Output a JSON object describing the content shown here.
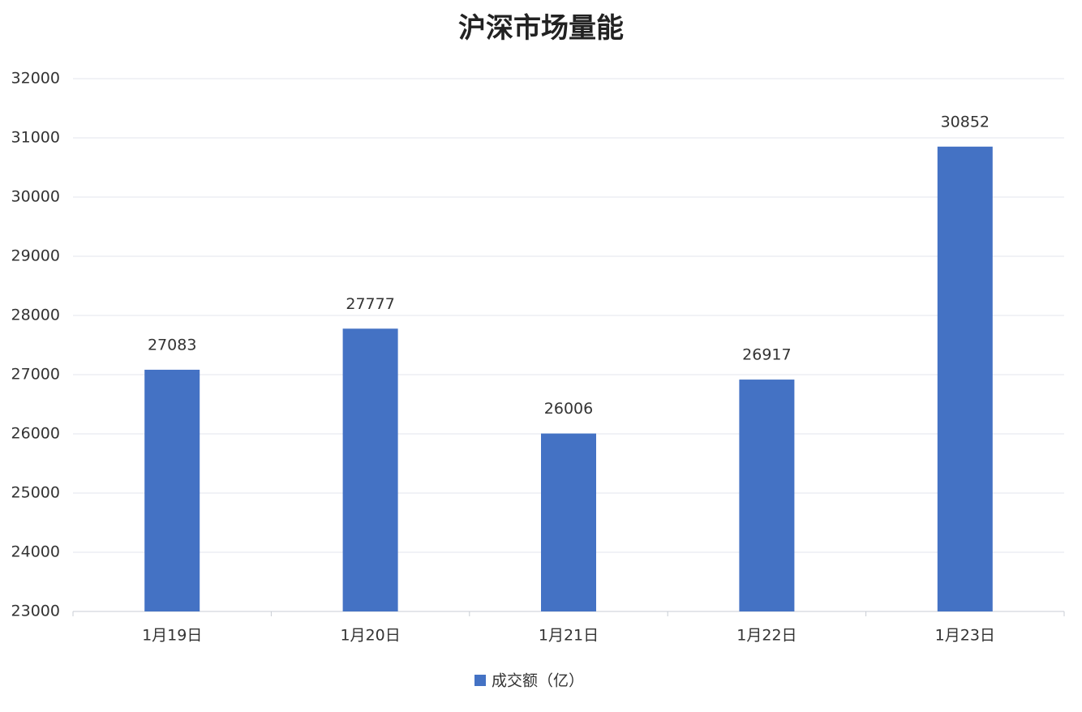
{
  "chart_data": {
    "type": "bar",
    "title": "沪深市场量能",
    "categories": [
      "1月19日",
      "1月20日",
      "1月21日",
      "1月22日",
      "1月23日"
    ],
    "series": [
      {
        "name": "成交额（亿）",
        "color": "#4472c4",
        "values": [
          27083,
          27777,
          26006,
          26917,
          30852
        ]
      }
    ],
    "ylim": [
      23000,
      32000
    ],
    "yticks": [
      23000,
      24000,
      25000,
      26000,
      27000,
      28000,
      29000,
      30000,
      31000,
      32000
    ],
    "grid": true,
    "data_labels": true,
    "legend": "bottom"
  }
}
